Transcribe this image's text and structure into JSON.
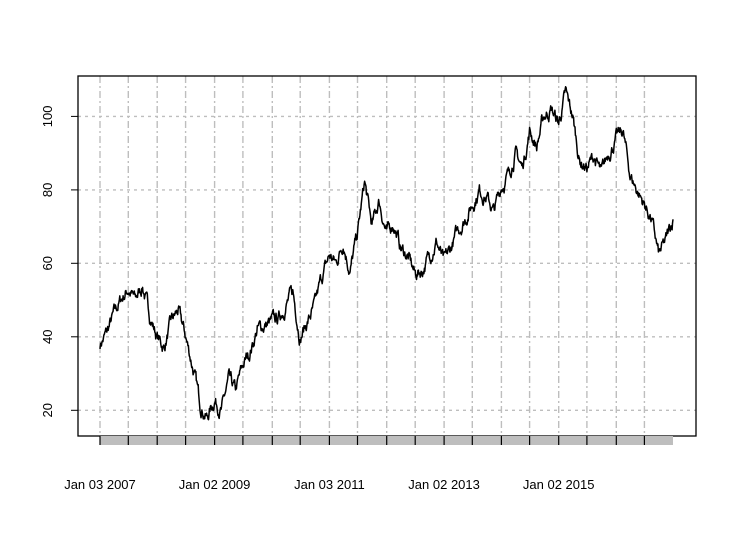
{
  "chart_data": {
    "type": "line",
    "title": "",
    "xlabel": "",
    "ylabel": "",
    "grid": true,
    "ylim": [
      13,
      111
    ],
    "yticks": [
      20,
      40,
      60,
      80,
      100
    ],
    "ytick_labels": [
      "20",
      "40",
      "60",
      "80",
      "100"
    ],
    "xlim": [
      "2007-01-03",
      "2016-12-30"
    ],
    "xtick_labels": [
      {
        "date": "2007-01-03",
        "label": "Jan 03 2007"
      },
      {
        "date": "2009-01-02",
        "label": "Jan 02 2009"
      },
      {
        "date": "2011-01-03",
        "label": "Jan 03 2011"
      },
      {
        "date": "2013-01-02",
        "label": "Jan 02 2013"
      },
      {
        "date": "2015-01-02",
        "label": "Jan 02 2015"
      }
    ],
    "vgrid_dates": [
      "2007-01-03",
      "2007-07-02",
      "2008-01-02",
      "2008-07-01",
      "2009-01-02",
      "2009-07-01",
      "2010-01-04",
      "2010-07-01",
      "2011-01-03",
      "2011-07-01",
      "2012-01-03",
      "2012-07-02",
      "2013-01-02",
      "2013-07-01",
      "2014-01-02",
      "2014-07-01",
      "2015-01-02",
      "2015-07-01",
      "2016-01-04",
      "2016-07-01"
    ],
    "series": [
      {
        "color": "#000000",
        "x": [
          "2007-01-03",
          "2007-02-15",
          "2007-04-02",
          "2007-05-15",
          "2007-07-02",
          "2007-08-15",
          "2007-10-01",
          "2007-11-15",
          "2008-01-02",
          "2008-02-15",
          "2008-04-01",
          "2008-05-15",
          "2008-07-01",
          "2008-08-15",
          "2008-10-01",
          "2008-11-15",
          "2009-01-02",
          "2009-02-15",
          "2009-04-01",
          "2009-05-15",
          "2009-07-01",
          "2009-08-15",
          "2009-10-01",
          "2009-11-15",
          "2010-01-04",
          "2010-02-15",
          "2010-04-01",
          "2010-05-15",
          "2010-07-01",
          "2010-08-15",
          "2010-10-01",
          "2010-11-15",
          "2011-01-03",
          "2011-02-15",
          "2011-04-01",
          "2011-05-15",
          "2011-07-01",
          "2011-08-15",
          "2011-10-01",
          "2011-11-15",
          "2012-01-03",
          "2012-02-15",
          "2012-04-02",
          "2012-05-15",
          "2012-07-02",
          "2012-08-15",
          "2012-10-01",
          "2012-11-15",
          "2013-01-02",
          "2013-02-15",
          "2013-04-01",
          "2013-05-15",
          "2013-07-01",
          "2013-08-15",
          "2013-10-01",
          "2013-11-15",
          "2014-01-02",
          "2014-02-15",
          "2014-04-01",
          "2014-05-15",
          "2014-07-01",
          "2014-08-15",
          "2014-10-01",
          "2014-11-15",
          "2015-01-02",
          "2015-02-15",
          "2015-04-01",
          "2015-05-15",
          "2015-07-01",
          "2015-08-15",
          "2015-10-01",
          "2015-11-15",
          "2016-01-04",
          "2016-02-15",
          "2016-04-01",
          "2016-05-15",
          "2016-07-01",
          "2016-08-15",
          "2016-10-01",
          "2016-11-15",
          "2016-12-30"
        ],
        "values": [
          38,
          41,
          46,
          50,
          53,
          50,
          54,
          46,
          40,
          37,
          44,
          47,
          40,
          32,
          22,
          18,
          23,
          20,
          28,
          25,
          32,
          36,
          42,
          43,
          44,
          45,
          49,
          52,
          40,
          44,
          48,
          56,
          62,
          60,
          66,
          58,
          68,
          82,
          70,
          77,
          68,
          71,
          64,
          62,
          57,
          58,
          62,
          66,
          60,
          64,
          69,
          72,
          76,
          80,
          78,
          74,
          81,
          84,
          90,
          86,
          96,
          92,
          100,
          102,
          98,
          106,
          100,
          88,
          86,
          89,
          84,
          90,
          94,
          96,
          84,
          80,
          76,
          72,
          62,
          66,
          72
        ]
      }
    ]
  }
}
